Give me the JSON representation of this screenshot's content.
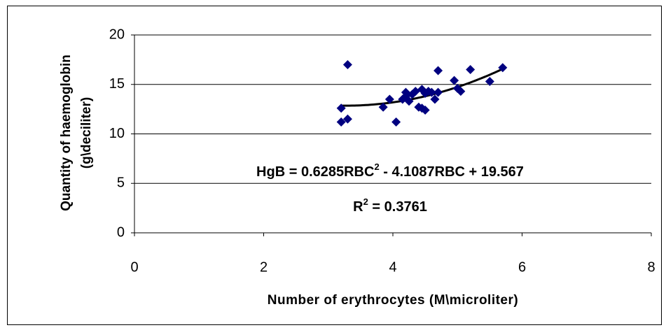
{
  "chart_data": {
    "type": "scatter",
    "x_label": "Number of erythrocytes (M\\microliter)",
    "y_label": [
      "Quantity of haemoglobin",
      "(g\\deciliter)"
    ],
    "equation": [
      "HgB = 0.6285RBC",
      "2",
      " - 4.1087RBC + 19.567"
    ],
    "r_squared": [
      "R",
      "2",
      " = 0.3761"
    ],
    "trendline": {
      "type": "polynomial",
      "coefficients": [
        0.6285,
        -4.1087,
        19.567
      ],
      "color": "#000000"
    },
    "color": "#000080",
    "x": [
      3.2,
      3.2,
      3.3,
      3.3,
      3.85,
      3.95,
      4.05,
      4.15,
      4.2,
      4.2,
      4.25,
      4.3,
      4.35,
      4.4,
      4.45,
      4.45,
      4.5,
      4.5,
      4.55,
      4.6,
      4.65,
      4.7,
      4.7,
      4.95,
      5.0,
      5.05,
      5.2,
      5.5,
      5.7
    ],
    "values": [
      12.6,
      11.2,
      11.5,
      17.0,
      12.7,
      13.5,
      11.2,
      13.5,
      14.2,
      13.8,
      13.3,
      14.0,
      14.3,
      12.7,
      12.6,
      14.5,
      12.4,
      14.1,
      14.3,
      14.2,
      13.5,
      14.2,
      16.4,
      15.4,
      14.6,
      14.3,
      16.5,
      15.3,
      16.7
    ],
    "xlim": [
      0,
      8
    ],
    "xticks": [
      0,
      2,
      4,
      6,
      8
    ],
    "ylim": [
      0,
      20
    ],
    "yticks": [
      0,
      5,
      10,
      15,
      20
    ],
    "grid": true
  }
}
